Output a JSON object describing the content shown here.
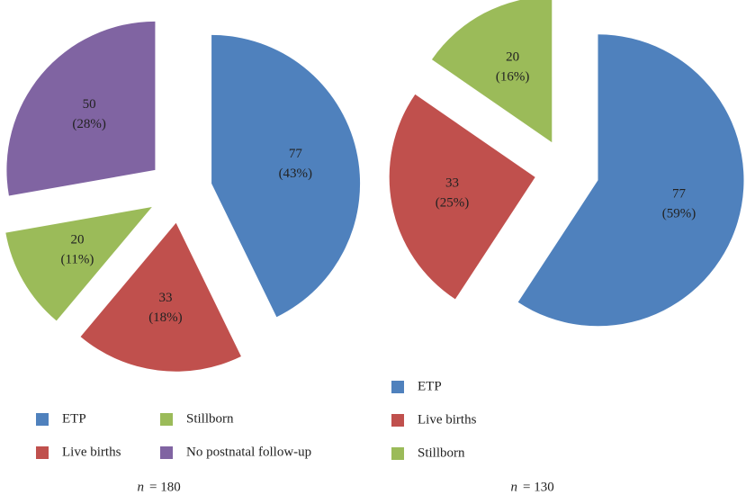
{
  "chart_data": [
    {
      "type": "pie",
      "categories": [
        "ETP",
        "Live births",
        "Stillborn",
        "No postnatal follow-up"
      ],
      "values": [
        77,
        33,
        20,
        50
      ],
      "percent_labels": [
        "(43%)",
        "(18%)",
        "(11%)",
        "(28%)"
      ],
      "colors": [
        "#4f81bd",
        "#c0504d",
        "#9bbb59",
        "#8064a2"
      ],
      "legend_columns": 2,
      "caption": {
        "symbol": "n",
        "text": "= 180"
      }
    },
    {
      "type": "pie",
      "categories": [
        "ETP",
        "Live births",
        "Stillborn"
      ],
      "values": [
        77,
        33,
        20
      ],
      "percent_labels": [
        "(59%)",
        "(25%)",
        "(16%)"
      ],
      "colors": [
        "#4f81bd",
        "#c0504d",
        "#9bbb59"
      ],
      "legend_columns": 1,
      "caption": {
        "symbol": "n",
        "text": "= 130"
      }
    }
  ]
}
